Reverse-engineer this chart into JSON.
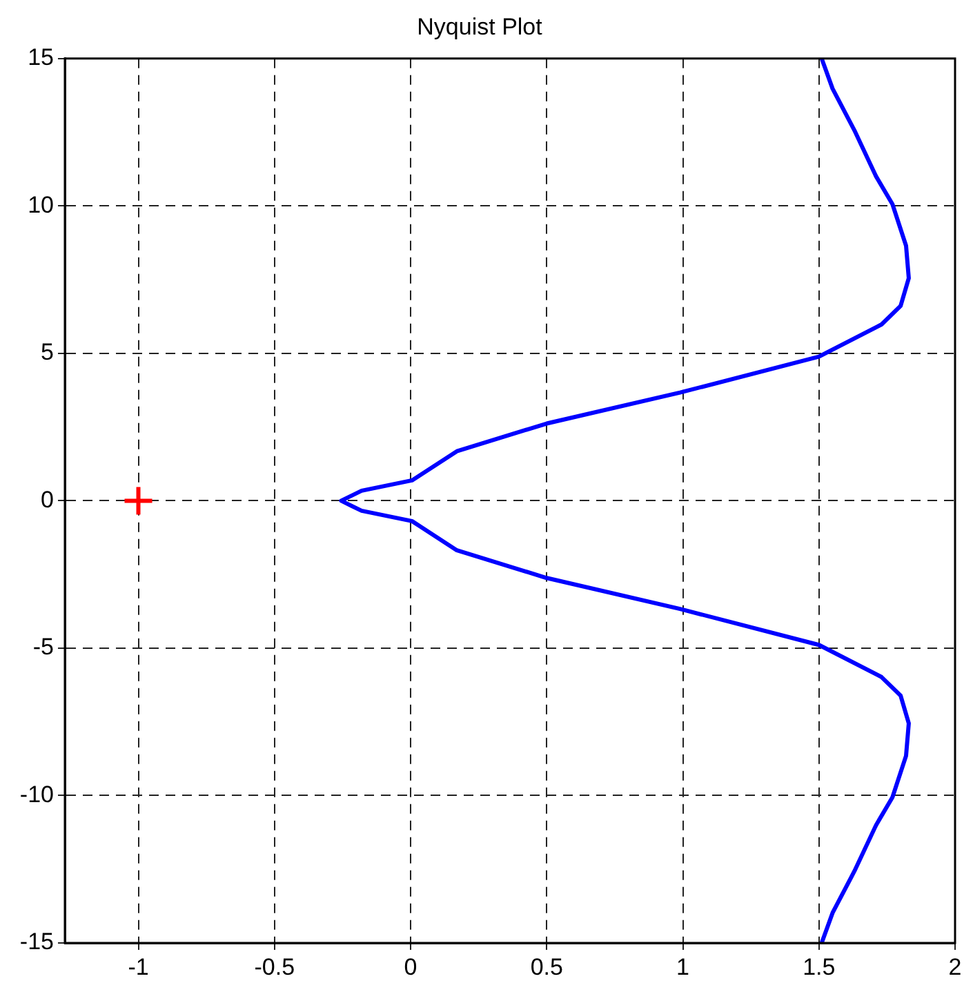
{
  "chart_data": {
    "type": "line",
    "title": "Nyquist Plot",
    "xlim": [
      -1.27,
      2
    ],
    "xticks": [
      -1,
      -0.5,
      0,
      0.5,
      1,
      1.5,
      2
    ],
    "ylim": [
      -15,
      15
    ],
    "yticks": [
      -15,
      -10,
      -5,
      0,
      5,
      10,
      15
    ],
    "grid": true,
    "legend": false,
    "series": [
      {
        "color": "#0000ff",
        "marker": "none",
        "line_style": "solid",
        "x": [
          1.51,
          1.55,
          1.63,
          1.71,
          1.77,
          1.82,
          1.83,
          1.8,
          1.73,
          1.5,
          0.99,
          0.5,
          0.17,
          0.005,
          -0.18,
          -0.255,
          -0.18,
          0.005,
          0.17,
          0.5,
          0.99,
          1.5,
          1.73,
          1.8,
          1.83,
          1.82,
          1.77,
          1.71,
          1.63,
          1.55,
          1.51
        ],
        "values": [
          15,
          13.98,
          12.57,
          11,
          10.06,
          8.65,
          7.55,
          6.61,
          5.98,
          4.89,
          3.67,
          2.62,
          1.68,
          0.69,
          0.34,
          0,
          -0.34,
          -0.69,
          -1.68,
          -2.62,
          -3.67,
          -4.89,
          -5.98,
          -6.61,
          -7.55,
          -8.65,
          -10.06,
          -11,
          -12.57,
          -13.98,
          -15
        ]
      },
      {
        "type": "scatter",
        "color": "#ff0000",
        "marker": "cross",
        "x": [
          -1
        ],
        "values": [
          0
        ]
      }
    ]
  }
}
